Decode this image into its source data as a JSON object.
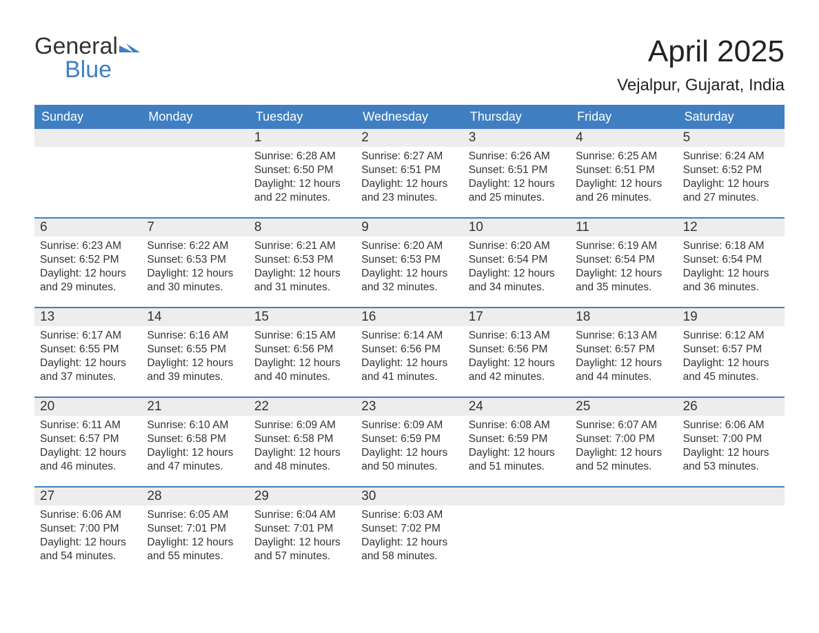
{
  "logo": {
    "general": "General",
    "blue": "Blue",
    "arrow_color": "#3f7fc1"
  },
  "title": "April 2025",
  "location": "Vejalpur, Gujarat, India",
  "colors": {
    "header_bg": "#3f7fc1",
    "header_fg": "#ffffff",
    "daynum_bg": "#ededed",
    "text": "#333333",
    "rule": "#3f7fc1",
    "page_bg": "#ffffff"
  },
  "dow": [
    "Sunday",
    "Monday",
    "Tuesday",
    "Wednesday",
    "Thursday",
    "Friday",
    "Saturday"
  ],
  "weeks": [
    [
      null,
      null,
      {
        "n": "1",
        "sr": "6:28 AM",
        "ss": "6:50 PM",
        "dl": "12 hours and 22 minutes."
      },
      {
        "n": "2",
        "sr": "6:27 AM",
        "ss": "6:51 PM",
        "dl": "12 hours and 23 minutes."
      },
      {
        "n": "3",
        "sr": "6:26 AM",
        "ss": "6:51 PM",
        "dl": "12 hours and 25 minutes."
      },
      {
        "n": "4",
        "sr": "6:25 AM",
        "ss": "6:51 PM",
        "dl": "12 hours and 26 minutes."
      },
      {
        "n": "5",
        "sr": "6:24 AM",
        "ss": "6:52 PM",
        "dl": "12 hours and 27 minutes."
      }
    ],
    [
      {
        "n": "6",
        "sr": "6:23 AM",
        "ss": "6:52 PM",
        "dl": "12 hours and 29 minutes."
      },
      {
        "n": "7",
        "sr": "6:22 AM",
        "ss": "6:53 PM",
        "dl": "12 hours and 30 minutes."
      },
      {
        "n": "8",
        "sr": "6:21 AM",
        "ss": "6:53 PM",
        "dl": "12 hours and 31 minutes."
      },
      {
        "n": "9",
        "sr": "6:20 AM",
        "ss": "6:53 PM",
        "dl": "12 hours and 32 minutes."
      },
      {
        "n": "10",
        "sr": "6:20 AM",
        "ss": "6:54 PM",
        "dl": "12 hours and 34 minutes."
      },
      {
        "n": "11",
        "sr": "6:19 AM",
        "ss": "6:54 PM",
        "dl": "12 hours and 35 minutes."
      },
      {
        "n": "12",
        "sr": "6:18 AM",
        "ss": "6:54 PM",
        "dl": "12 hours and 36 minutes."
      }
    ],
    [
      {
        "n": "13",
        "sr": "6:17 AM",
        "ss": "6:55 PM",
        "dl": "12 hours and 37 minutes."
      },
      {
        "n": "14",
        "sr": "6:16 AM",
        "ss": "6:55 PM",
        "dl": "12 hours and 39 minutes."
      },
      {
        "n": "15",
        "sr": "6:15 AM",
        "ss": "6:56 PM",
        "dl": "12 hours and 40 minutes."
      },
      {
        "n": "16",
        "sr": "6:14 AM",
        "ss": "6:56 PM",
        "dl": "12 hours and 41 minutes."
      },
      {
        "n": "17",
        "sr": "6:13 AM",
        "ss": "6:56 PM",
        "dl": "12 hours and 42 minutes."
      },
      {
        "n": "18",
        "sr": "6:13 AM",
        "ss": "6:57 PM",
        "dl": "12 hours and 44 minutes."
      },
      {
        "n": "19",
        "sr": "6:12 AM",
        "ss": "6:57 PM",
        "dl": "12 hours and 45 minutes."
      }
    ],
    [
      {
        "n": "20",
        "sr": "6:11 AM",
        "ss": "6:57 PM",
        "dl": "12 hours and 46 minutes."
      },
      {
        "n": "21",
        "sr": "6:10 AM",
        "ss": "6:58 PM",
        "dl": "12 hours and 47 minutes."
      },
      {
        "n": "22",
        "sr": "6:09 AM",
        "ss": "6:58 PM",
        "dl": "12 hours and 48 minutes."
      },
      {
        "n": "23",
        "sr": "6:09 AM",
        "ss": "6:59 PM",
        "dl": "12 hours and 50 minutes."
      },
      {
        "n": "24",
        "sr": "6:08 AM",
        "ss": "6:59 PM",
        "dl": "12 hours and 51 minutes."
      },
      {
        "n": "25",
        "sr": "6:07 AM",
        "ss": "7:00 PM",
        "dl": "12 hours and 52 minutes."
      },
      {
        "n": "26",
        "sr": "6:06 AM",
        "ss": "7:00 PM",
        "dl": "12 hours and 53 minutes."
      }
    ],
    [
      {
        "n": "27",
        "sr": "6:06 AM",
        "ss": "7:00 PM",
        "dl": "12 hours and 54 minutes."
      },
      {
        "n": "28",
        "sr": "6:05 AM",
        "ss": "7:01 PM",
        "dl": "12 hours and 55 minutes."
      },
      {
        "n": "29",
        "sr": "6:04 AM",
        "ss": "7:01 PM",
        "dl": "12 hours and 57 minutes."
      },
      {
        "n": "30",
        "sr": "6:03 AM",
        "ss": "7:02 PM",
        "dl": "12 hours and 58 minutes."
      },
      null,
      null,
      null
    ]
  ],
  "labels": {
    "sunrise": "Sunrise: ",
    "sunset": "Sunset: ",
    "daylight": "Daylight: "
  }
}
